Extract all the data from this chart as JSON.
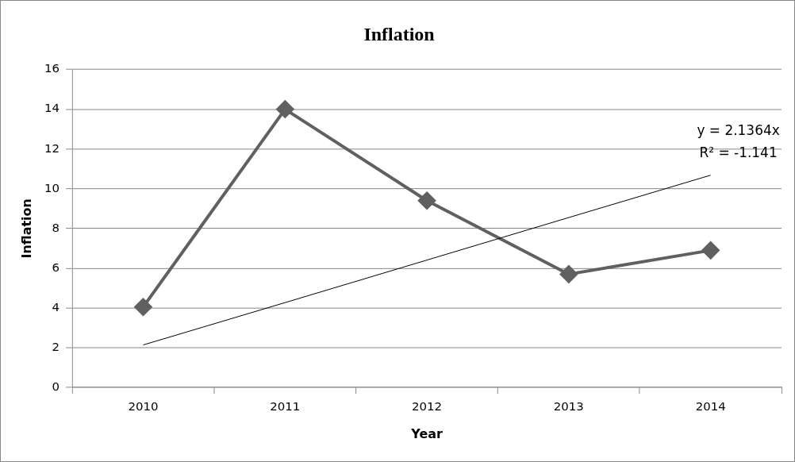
{
  "chart_data": {
    "type": "line",
    "title": "Inflation",
    "xlabel": "Year",
    "ylabel": "Inflation",
    "categories": [
      "2010",
      "2011",
      "2012",
      "2013",
      "2014"
    ],
    "series": [
      {
        "color": "#606060",
        "values": [
          4.05,
          14.0,
          9.4,
          5.7,
          6.9
        ],
        "marker": "diamond"
      },
      {
        "color": "#000000",
        "values": [
          2.14,
          4.27,
          6.41,
          8.55,
          10.68
        ],
        "marker": "none"
      }
    ],
    "ylim": [
      0,
      16
    ],
    "yticks": [
      0,
      2,
      4,
      6,
      8,
      10,
      12,
      14,
      16
    ],
    "grid": "y",
    "legend": false,
    "annotations": [
      "y = 2.1364x",
      "R² = -1.141"
    ]
  }
}
